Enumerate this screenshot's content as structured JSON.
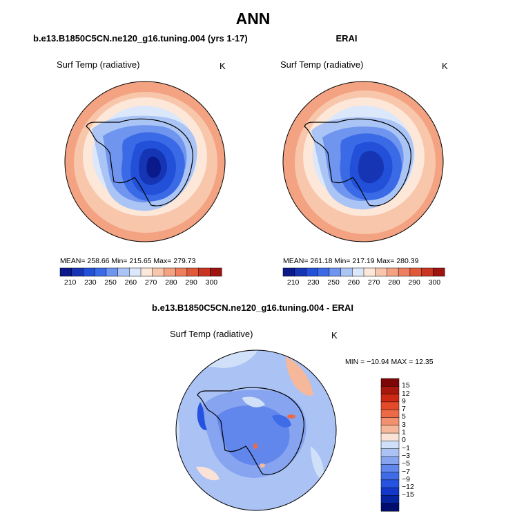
{
  "title": "ANN",
  "colors": {
    "abs_scale": [
      "#0a1a8a",
      "#1535b5",
      "#2250d8",
      "#3a6ae6",
      "#6f95ef",
      "#aac4f5",
      "#dbe7fa",
      "#fde7d8",
      "#f8c6aa",
      "#f3a282",
      "#ee7e5d",
      "#e05a3a",
      "#c83522",
      "#9e1410"
    ],
    "diff_scale": [
      "#000c6e",
      "#0624a0",
      "#1138c8",
      "#2552de",
      "#3e6be6",
      "#6287ec",
      "#87a4f0",
      "#abc2f4",
      "#d0e0f8",
      "#fbe2d6",
      "#f6b89a",
      "#f29070",
      "#ec6a48",
      "#e44a28",
      "#cc2a14",
      "#a8180c",
      "#7d0606"
    ],
    "coast": "#000000"
  },
  "panels": {
    "model": {
      "title": "b.e13.B1850C5CN.ne120_g16.tuning.004 (yrs 1-17)",
      "variable": "Surf Temp (radiative)",
      "units": "K",
      "stats": "MEAN= 258.66   Min= 215.65   Max= 279.73"
    },
    "obs": {
      "title": "ERAI",
      "variable": "Surf Temp (radiative)",
      "units": "K",
      "stats": "MEAN= 261.18   Min= 217.19   Max= 280.39"
    },
    "diff": {
      "title": "b.e13.B1850C5CN.ne120_g16.tuning.004 - ERAI",
      "variable": "Surf Temp (radiative)",
      "units": "K",
      "stats": "MIN = −10.94  MAX =  12.35"
    }
  },
  "colorbar_abs": {
    "ticks": [
      "210",
      "230",
      "250",
      "260",
      "270",
      "280",
      "290",
      "300"
    ]
  },
  "colorbar_diff": {
    "ticks": [
      "15",
      "12",
      "9",
      "7",
      "5",
      "3",
      "1",
      "0",
      "−1",
      "−3",
      "−5",
      "−7",
      "−9",
      "−12",
      "−15"
    ]
  }
}
